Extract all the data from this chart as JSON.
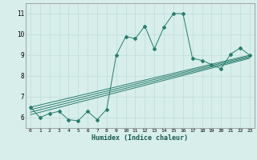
{
  "title": "",
  "xlabel": "Humidex (Indice chaleur)",
  "ylabel": "",
  "background_color": "#d7eeeb",
  "line_color": "#2a7d6e",
  "xlim": [
    -0.5,
    23.5
  ],
  "ylim": [
    5.5,
    11.5
  ],
  "xticks": [
    0,
    1,
    2,
    3,
    4,
    5,
    6,
    7,
    8,
    9,
    10,
    11,
    12,
    13,
    14,
    15,
    16,
    17,
    18,
    19,
    20,
    21,
    22,
    23
  ],
  "yticks": [
    6,
    7,
    8,
    9,
    10,
    11
  ],
  "grid_color": "#c0dcda",
  "series1_x": [
    0,
    1,
    2,
    3,
    4,
    5,
    6,
    7,
    8,
    9,
    10,
    11,
    12,
    13,
    14,
    15,
    16,
    17,
    18,
    19,
    20,
    21,
    22,
    23
  ],
  "series1_y": [
    6.5,
    6.0,
    6.2,
    6.3,
    5.9,
    5.85,
    6.3,
    5.9,
    6.4,
    9.0,
    9.9,
    9.8,
    10.4,
    9.3,
    10.35,
    11.0,
    11.0,
    8.85,
    8.75,
    8.55,
    8.35,
    9.05,
    9.35,
    9.0
  ],
  "series2_x": [
    0,
    23
  ],
  "series2_y": [
    6.5,
    9.0
  ],
  "series3_x": [
    0,
    23
  ],
  "series3_y": [
    6.38,
    8.95
  ],
  "series4_x": [
    0,
    23
  ],
  "series4_y": [
    6.26,
    8.9
  ],
  "series5_x": [
    0,
    23
  ],
  "series5_y": [
    6.14,
    8.85
  ]
}
